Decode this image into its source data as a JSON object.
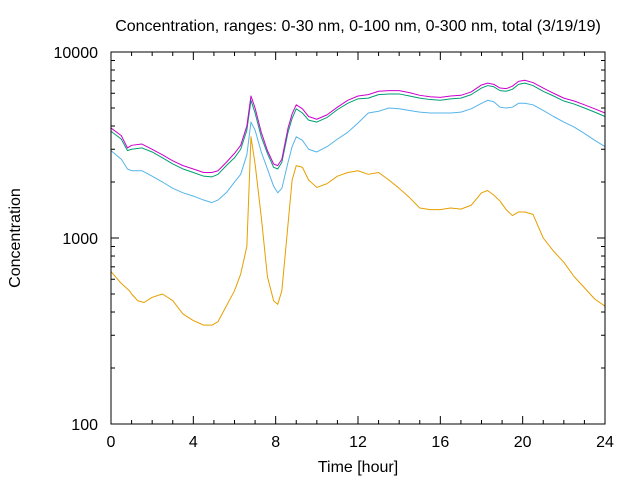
{
  "chart_data": {
    "type": "line",
    "title": "Concentration, ranges: 0-30 nm, 0-100 nm, 0-300 nm, total (3/19/19)",
    "xlabel": "Time [hour]",
    "ylabel": "Concentration",
    "xlim": [
      0,
      24
    ],
    "ylim": [
      100,
      10000
    ],
    "yscale": "log",
    "x_ticks": [
      0,
      4,
      8,
      12,
      16,
      20,
      24
    ],
    "y_ticks": [
      100,
      1000,
      10000
    ],
    "x_tick_labels": [
      "0",
      "4",
      "8",
      "12",
      "16",
      "20",
      "24"
    ],
    "y_tick_labels": [
      "100",
      "1000",
      "10000"
    ],
    "grid": false,
    "legend": "none",
    "series": [
      {
        "color": "#e69f00",
        "x": [
          0,
          0.5,
          0.9,
          1.0,
          1.3,
          1.6,
          2.0,
          2.5,
          3.0,
          3.5,
          4.0,
          4.5,
          4.9,
          5.2,
          5.6,
          6.0,
          6.3,
          6.6,
          6.8,
          7.0,
          7.3,
          7.6,
          7.9,
          8.1,
          8.3,
          8.5,
          8.8,
          9.0,
          9.3,
          9.6,
          10.0,
          10.5,
          11.0,
          11.5,
          12.0,
          12.5,
          13.0,
          13.5,
          14.0,
          14.5,
          15.0,
          15.5,
          16.0,
          16.5,
          17.0,
          17.5,
          18.0,
          18.3,
          18.6,
          18.9,
          19.2,
          19.5,
          19.8,
          20.1,
          20.5,
          21.0,
          21.5,
          22.0,
          22.5,
          23.0,
          23.5,
          24.0
        ],
        "y": [
          660,
          570,
          520,
          500,
          460,
          450,
          480,
          500,
          460,
          390,
          360,
          340,
          340,
          355,
          430,
          520,
          640,
          900,
          3500,
          2500,
          1300,
          620,
          460,
          440,
          520,
          900,
          2050,
          2450,
          2400,
          2050,
          1870,
          1960,
          2150,
          2250,
          2300,
          2200,
          2250,
          2050,
          1850,
          1650,
          1450,
          1420,
          1420,
          1450,
          1430,
          1500,
          1750,
          1800,
          1700,
          1580,
          1420,
          1320,
          1380,
          1380,
          1340,
          1000,
          850,
          740,
          620,
          540,
          470,
          430
        ]
      },
      {
        "color": "#56b4e9",
        "x": [
          0,
          0.5,
          0.8,
          1.0,
          1.5,
          2.0,
          2.5,
          3.0,
          3.5,
          4.0,
          4.5,
          4.9,
          5.2,
          5.6,
          6.0,
          6.3,
          6.6,
          6.8,
          7.0,
          7.3,
          7.6,
          7.9,
          8.1,
          8.3,
          8.6,
          8.8,
          9.0,
          9.3,
          9.6,
          10.0,
          10.5,
          11.0,
          11.5,
          12.0,
          12.5,
          13.0,
          13.5,
          14.0,
          14.5,
          15.0,
          15.5,
          16.0,
          16.5,
          17.0,
          17.5,
          18.0,
          18.3,
          18.6,
          18.9,
          19.2,
          19.5,
          19.8,
          20.1,
          20.5,
          21.0,
          21.5,
          22.0,
          22.5,
          23.0,
          23.5,
          24.0
        ],
        "y": [
          2950,
          2650,
          2350,
          2300,
          2300,
          2150,
          2000,
          1850,
          1750,
          1680,
          1600,
          1550,
          1600,
          1750,
          2000,
          2200,
          2800,
          4200,
          3800,
          2900,
          2350,
          1900,
          1750,
          1850,
          2550,
          3100,
          3500,
          3350,
          3000,
          2900,
          3100,
          3400,
          3700,
          4150,
          4700,
          4800,
          5000,
          4950,
          4850,
          4750,
          4700,
          4700,
          4700,
          4750,
          4950,
          5300,
          5500,
          5400,
          5050,
          5000,
          5050,
          5300,
          5300,
          5200,
          4850,
          4500,
          4200,
          3950,
          3650,
          3350,
          3100
        ]
      },
      {
        "color": "#009e73",
        "x": [
          0,
          0.5,
          0.8,
          1.0,
          1.5,
          2.0,
          2.5,
          3.0,
          3.5,
          4.0,
          4.5,
          4.9,
          5.2,
          5.6,
          6.0,
          6.3,
          6.6,
          6.8,
          7.0,
          7.3,
          7.6,
          7.9,
          8.1,
          8.3,
          8.6,
          8.8,
          9.0,
          9.3,
          9.6,
          10.0,
          10.5,
          11.0,
          11.5,
          12.0,
          12.5,
          13.0,
          13.5,
          14.0,
          14.5,
          15.0,
          15.5,
          16.0,
          16.5,
          17.0,
          17.5,
          18.0,
          18.3,
          18.6,
          18.9,
          19.2,
          19.5,
          19.8,
          20.1,
          20.5,
          21.0,
          21.5,
          22.0,
          22.5,
          23.0,
          23.5,
          24.0
        ],
        "y": [
          3750,
          3400,
          2950,
          3000,
          3050,
          2900,
          2700,
          2500,
          2350,
          2250,
          2150,
          2130,
          2200,
          2450,
          2700,
          3000,
          3800,
          5500,
          4700,
          3500,
          2850,
          2400,
          2350,
          2550,
          3700,
          4400,
          4950,
          4700,
          4300,
          4200,
          4450,
          4900,
          5300,
          5600,
          5650,
          5900,
          5950,
          5950,
          5800,
          5650,
          5550,
          5500,
          5600,
          5650,
          5900,
          6400,
          6600,
          6500,
          6200,
          6150,
          6300,
          6700,
          6800,
          6600,
          6150,
          5800,
          5450,
          5250,
          5000,
          4750,
          4500
        ]
      },
      {
        "color": "#cc00cc",
        "x": [
          0,
          0.5,
          0.8,
          1.0,
          1.5,
          2.0,
          2.5,
          3.0,
          3.5,
          4.0,
          4.5,
          4.9,
          5.2,
          5.6,
          6.0,
          6.3,
          6.6,
          6.8,
          7.0,
          7.3,
          7.6,
          7.9,
          8.1,
          8.3,
          8.6,
          8.8,
          9.0,
          9.3,
          9.6,
          10.0,
          10.5,
          11.0,
          11.5,
          12.0,
          12.5,
          13.0,
          13.5,
          14.0,
          14.5,
          15.0,
          15.5,
          16.0,
          16.5,
          17.0,
          17.5,
          18.0,
          18.3,
          18.6,
          18.9,
          19.2,
          19.5,
          19.8,
          20.1,
          20.5,
          21.0,
          21.5,
          22.0,
          22.5,
          23.0,
          23.5,
          24.0
        ],
        "y": [
          3900,
          3550,
          3050,
          3150,
          3200,
          3000,
          2800,
          2600,
          2450,
          2350,
          2250,
          2250,
          2300,
          2550,
          2850,
          3150,
          4000,
          5800,
          5000,
          3700,
          2950,
          2500,
          2450,
          2650,
          3900,
          4650,
          5200,
          4950,
          4500,
          4350,
          4600,
          5050,
          5500,
          5800,
          5900,
          6150,
          6200,
          6200,
          6050,
          5850,
          5750,
          5700,
          5800,
          5850,
          6100,
          6650,
          6800,
          6700,
          6400,
          6350,
          6550,
          6950,
          7050,
          6850,
          6400,
          6000,
          5650,
          5450,
          5200,
          4950,
          4700
        ]
      }
    ]
  }
}
